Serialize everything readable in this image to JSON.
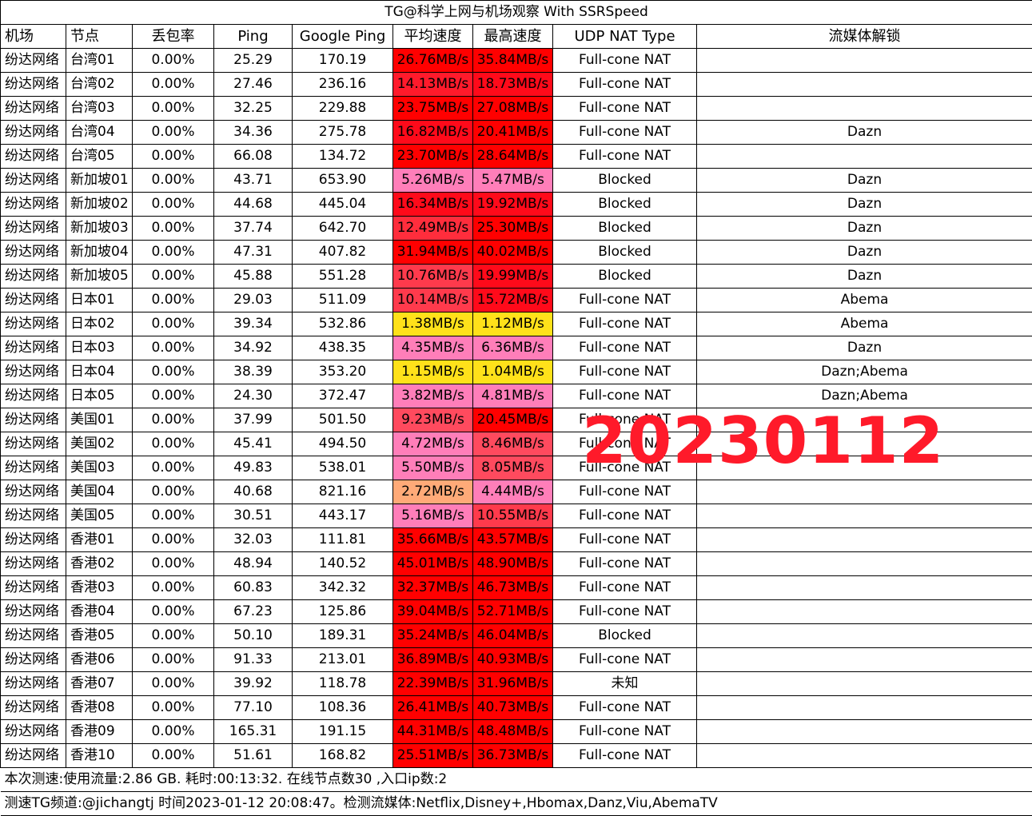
{
  "title": "TG@科学上网与机场观察 With SSRSpeed",
  "headers": [
    "机场",
    "节点",
    "丢包率",
    "Ping",
    "Google Ping",
    "平均速度",
    "最高速度",
    "UDP NAT Type",
    "流媒体解锁"
  ],
  "colors": {
    "red": "#ff0000",
    "red_mid": "#ff2d3c",
    "red_soft": "#ff4a5e",
    "pink": "#ff7eb9",
    "yellow": "#ffe11a",
    "orange": "#ffaa78"
  },
  "rows": [
    {
      "airport": "纷达网络",
      "node": "台湾01",
      "loss": "0.00%",
      "ping": "25.29",
      "gping": "170.19",
      "avg": "26.76MB/s",
      "avg_color": "#ff0000",
      "max": "35.84MB/s",
      "max_color": "#ff0000",
      "nat": "Full-cone NAT",
      "unlock": ""
    },
    {
      "airport": "纷达网络",
      "node": "台湾02",
      "loss": "0.00%",
      "ping": "27.46",
      "gping": "236.16",
      "avg": "14.13MB/s",
      "avg_color": "#ff1a2b",
      "max": "18.73MB/s",
      "max_color": "#ff0a1a",
      "nat": "Full-cone NAT",
      "unlock": ""
    },
    {
      "airport": "纷达网络",
      "node": "台湾03",
      "loss": "0.00%",
      "ping": "32.25",
      "gping": "229.88",
      "avg": "23.75MB/s",
      "avg_color": "#ff0000",
      "max": "27.08MB/s",
      "max_color": "#ff0000",
      "nat": "Full-cone NAT",
      "unlock": ""
    },
    {
      "airport": "纷达网络",
      "node": "台湾04",
      "loss": "0.00%",
      "ping": "34.36",
      "gping": "275.78",
      "avg": "16.82MB/s",
      "avg_color": "#ff0a1a",
      "max": "20.41MB/s",
      "max_color": "#ff0000",
      "nat": "Full-cone NAT",
      "unlock": "Dazn"
    },
    {
      "airport": "纷达网络",
      "node": "台湾05",
      "loss": "0.00%",
      "ping": "66.08",
      "gping": "134.72",
      "avg": "23.70MB/s",
      "avg_color": "#ff0000",
      "max": "28.64MB/s",
      "max_color": "#ff0000",
      "nat": "Full-cone NAT",
      "unlock": ""
    },
    {
      "airport": "纷达网络",
      "node": "新加坡01",
      "loss": "0.00%",
      "ping": "43.71",
      "gping": "653.90",
      "avg": "5.26MB/s",
      "avg_color": "#ff7eb9",
      "max": "5.47MB/s",
      "max_color": "#ff7eb9",
      "nat": "Blocked",
      "unlock": "Dazn"
    },
    {
      "airport": "纷达网络",
      "node": "新加坡02",
      "loss": "0.00%",
      "ping": "44.68",
      "gping": "445.04",
      "avg": "16.34MB/s",
      "avg_color": "#ff0a1a",
      "max": "19.92MB/s",
      "max_color": "#ff0a1a",
      "nat": "Blocked",
      "unlock": "Dazn"
    },
    {
      "airport": "纷达网络",
      "node": "新加坡03",
      "loss": "0.00%",
      "ping": "37.74",
      "gping": "642.70",
      "avg": "12.49MB/s",
      "avg_color": "#ff2d3c",
      "max": "25.30MB/s",
      "max_color": "#ff0000",
      "nat": "Blocked",
      "unlock": "Dazn"
    },
    {
      "airport": "纷达网络",
      "node": "新加坡04",
      "loss": "0.00%",
      "ping": "47.31",
      "gping": "407.82",
      "avg": "31.94MB/s",
      "avg_color": "#ff0000",
      "max": "40.02MB/s",
      "max_color": "#ff0000",
      "nat": "Blocked",
      "unlock": "Dazn"
    },
    {
      "airport": "纷达网络",
      "node": "新加坡05",
      "loss": "0.00%",
      "ping": "45.88",
      "gping": "551.28",
      "avg": "10.76MB/s",
      "avg_color": "#ff3a4c",
      "max": "19.99MB/s",
      "max_color": "#ff0a1a",
      "nat": "Blocked",
      "unlock": "Dazn"
    },
    {
      "airport": "纷达网络",
      "node": "日本01",
      "loss": "0.00%",
      "ping": "29.03",
      "gping": "511.09",
      "avg": "10.14MB/s",
      "avg_color": "#ff3a4c",
      "max": "15.72MB/s",
      "max_color": "#ff0a1a",
      "nat": "Full-cone NAT",
      "unlock": "Abema"
    },
    {
      "airport": "纷达网络",
      "node": "日本02",
      "loss": "0.00%",
      "ping": "39.34",
      "gping": "532.86",
      "avg": "1.38MB/s",
      "avg_color": "#ffe11a",
      "max": "1.12MB/s",
      "max_color": "#ffe11a",
      "nat": "Full-cone NAT",
      "unlock": "Abema"
    },
    {
      "airport": "纷达网络",
      "node": "日本03",
      "loss": "0.00%",
      "ping": "34.92",
      "gping": "438.35",
      "avg": "4.35MB/s",
      "avg_color": "#ff7eb9",
      "max": "6.36MB/s",
      "max_color": "#ff7eb9",
      "nat": "Full-cone NAT",
      "unlock": "Dazn"
    },
    {
      "airport": "纷达网络",
      "node": "日本04",
      "loss": "0.00%",
      "ping": "38.39",
      "gping": "353.20",
      "avg": "1.15MB/s",
      "avg_color": "#ffe11a",
      "max": "1.04MB/s",
      "max_color": "#ffe11a",
      "nat": "Full-cone NAT",
      "unlock": "Dazn;Abema"
    },
    {
      "airport": "纷达网络",
      "node": "日本05",
      "loss": "0.00%",
      "ping": "24.30",
      "gping": "372.47",
      "avg": "3.82MB/s",
      "avg_color": "#ff7eb9",
      "max": "4.81MB/s",
      "max_color": "#ff7eb9",
      "nat": "Full-cone NAT",
      "unlock": "Dazn;Abema"
    },
    {
      "airport": "纷达网络",
      "node": "美国01",
      "loss": "0.00%",
      "ping": "37.99",
      "gping": "501.50",
      "avg": "9.23MB/s",
      "avg_color": "#ff4a5e",
      "max": "20.45MB/s",
      "max_color": "#ff0000",
      "nat": "Full-cone NAT",
      "unlock": ""
    },
    {
      "airport": "纷达网络",
      "node": "美国02",
      "loss": "0.00%",
      "ping": "45.41",
      "gping": "494.50",
      "avg": "4.72MB/s",
      "avg_color": "#ff7eb9",
      "max": "8.46MB/s",
      "max_color": "#ff4a5e",
      "nat": "Full-cone NAT",
      "unlock": ""
    },
    {
      "airport": "纷达网络",
      "node": "美国03",
      "loss": "0.00%",
      "ping": "49.83",
      "gping": "538.01",
      "avg": "5.50MB/s",
      "avg_color": "#ff7eb9",
      "max": "8.05MB/s",
      "max_color": "#ff4a5e",
      "nat": "Full-cone NAT",
      "unlock": ""
    },
    {
      "airport": "纷达网络",
      "node": "美国04",
      "loss": "0.00%",
      "ping": "40.68",
      "gping": "821.16",
      "avg": "2.72MB/s",
      "avg_color": "#ffaa78",
      "max": "4.44MB/s",
      "max_color": "#ff7eb9",
      "nat": "Full-cone NAT",
      "unlock": ""
    },
    {
      "airport": "纷达网络",
      "node": "美国05",
      "loss": "0.00%",
      "ping": "30.51",
      "gping": "443.17",
      "avg": "5.16MB/s",
      "avg_color": "#ff7eb9",
      "max": "10.55MB/s",
      "max_color": "#ff3a4c",
      "nat": "Full-cone NAT",
      "unlock": ""
    },
    {
      "airport": "纷达网络",
      "node": "香港01",
      "loss": "0.00%",
      "ping": "32.03",
      "gping": "111.81",
      "avg": "35.66MB/s",
      "avg_color": "#ff0000",
      "max": "43.57MB/s",
      "max_color": "#ff0000",
      "nat": "Full-cone NAT",
      "unlock": ""
    },
    {
      "airport": "纷达网络",
      "node": "香港02",
      "loss": "0.00%",
      "ping": "48.94",
      "gping": "140.52",
      "avg": "45.01MB/s",
      "avg_color": "#ff0000",
      "max": "48.90MB/s",
      "max_color": "#ff0000",
      "nat": "Full-cone NAT",
      "unlock": ""
    },
    {
      "airport": "纷达网络",
      "node": "香港03",
      "loss": "0.00%",
      "ping": "60.83",
      "gping": "342.32",
      "avg": "32.37MB/s",
      "avg_color": "#ff0000",
      "max": "46.73MB/s",
      "max_color": "#ff0000",
      "nat": "Full-cone NAT",
      "unlock": ""
    },
    {
      "airport": "纷达网络",
      "node": "香港04",
      "loss": "0.00%",
      "ping": "67.23",
      "gping": "125.86",
      "avg": "39.04MB/s",
      "avg_color": "#ff0000",
      "max": "52.71MB/s",
      "max_color": "#ff0000",
      "nat": "Full-cone NAT",
      "unlock": ""
    },
    {
      "airport": "纷达网络",
      "node": "香港05",
      "loss": "0.00%",
      "ping": "50.10",
      "gping": "189.31",
      "avg": "35.24MB/s",
      "avg_color": "#ff0000",
      "max": "46.04MB/s",
      "max_color": "#ff0000",
      "nat": "Blocked",
      "unlock": ""
    },
    {
      "airport": "纷达网络",
      "node": "香港06",
      "loss": "0.00%",
      "ping": "91.33",
      "gping": "213.01",
      "avg": "36.89MB/s",
      "avg_color": "#ff0000",
      "max": "40.93MB/s",
      "max_color": "#ff0000",
      "nat": "Full-cone NAT",
      "unlock": ""
    },
    {
      "airport": "纷达网络",
      "node": "香港07",
      "loss": "0.00%",
      "ping": "39.92",
      "gping": "118.78",
      "avg": "22.39MB/s",
      "avg_color": "#ff0000",
      "max": "31.96MB/s",
      "max_color": "#ff0000",
      "nat": "未知",
      "unlock": ""
    },
    {
      "airport": "纷达网络",
      "node": "香港08",
      "loss": "0.00%",
      "ping": "77.10",
      "gping": "108.36",
      "avg": "26.41MB/s",
      "avg_color": "#ff0000",
      "max": "40.73MB/s",
      "max_color": "#ff0000",
      "nat": "Full-cone NAT",
      "unlock": ""
    },
    {
      "airport": "纷达网络",
      "node": "香港09",
      "loss": "0.00%",
      "ping": "165.31",
      "gping": "191.15",
      "avg": "44.31MB/s",
      "avg_color": "#ff0000",
      "max": "48.48MB/s",
      "max_color": "#ff0000",
      "nat": "Full-cone NAT",
      "unlock": ""
    },
    {
      "airport": "纷达网络",
      "node": "香港10",
      "loss": "0.00%",
      "ping": "51.61",
      "gping": "168.82",
      "avg": "25.51MB/s",
      "avg_color": "#ff0000",
      "max": "36.73MB/s",
      "max_color": "#ff0000",
      "nat": "Full-cone NAT",
      "unlock": ""
    }
  ],
  "footer": {
    "line1": "本次测速:使用流量:2.86 GB. 耗时:00:13:32. 在线节点数30 ,入口ip数:2",
    "line2": "测速TG频道:@jichangtj 时间2023-01-12 20:08:47。检测流媒体:Netflix,Disney+,Hbomax,Danz,Viu,AbemaTV"
  },
  "watermark": "20230112"
}
